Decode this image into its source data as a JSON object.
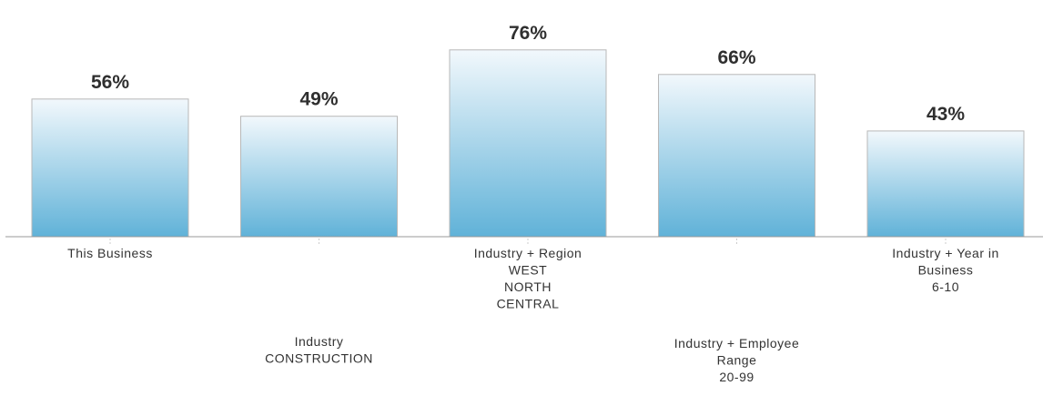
{
  "chart_data": {
    "type": "bar",
    "categories": [
      [
        "This Business"
      ],
      [
        "Industry",
        "CONSTRUCTION"
      ],
      [
        "Industry + Region",
        "WEST",
        "NORTH",
        "CENTRAL"
      ],
      [
        "Industry + Employee",
        "Range",
        "20-99"
      ],
      [
        "Industry + Year in",
        "Business",
        "6-10"
      ]
    ],
    "values": [
      56,
      49,
      76,
      66,
      43
    ],
    "data_labels": [
      "56%",
      "49%",
      "76%",
      "66%",
      "43%"
    ],
    "ylim": [
      0,
      80
    ],
    "grid": false,
    "colors": {
      "bar_top": "#f2f8fc",
      "bar_bottom": "#60b2d8",
      "bar_stroke": "#b8b8b8",
      "axis": "#999999"
    }
  }
}
